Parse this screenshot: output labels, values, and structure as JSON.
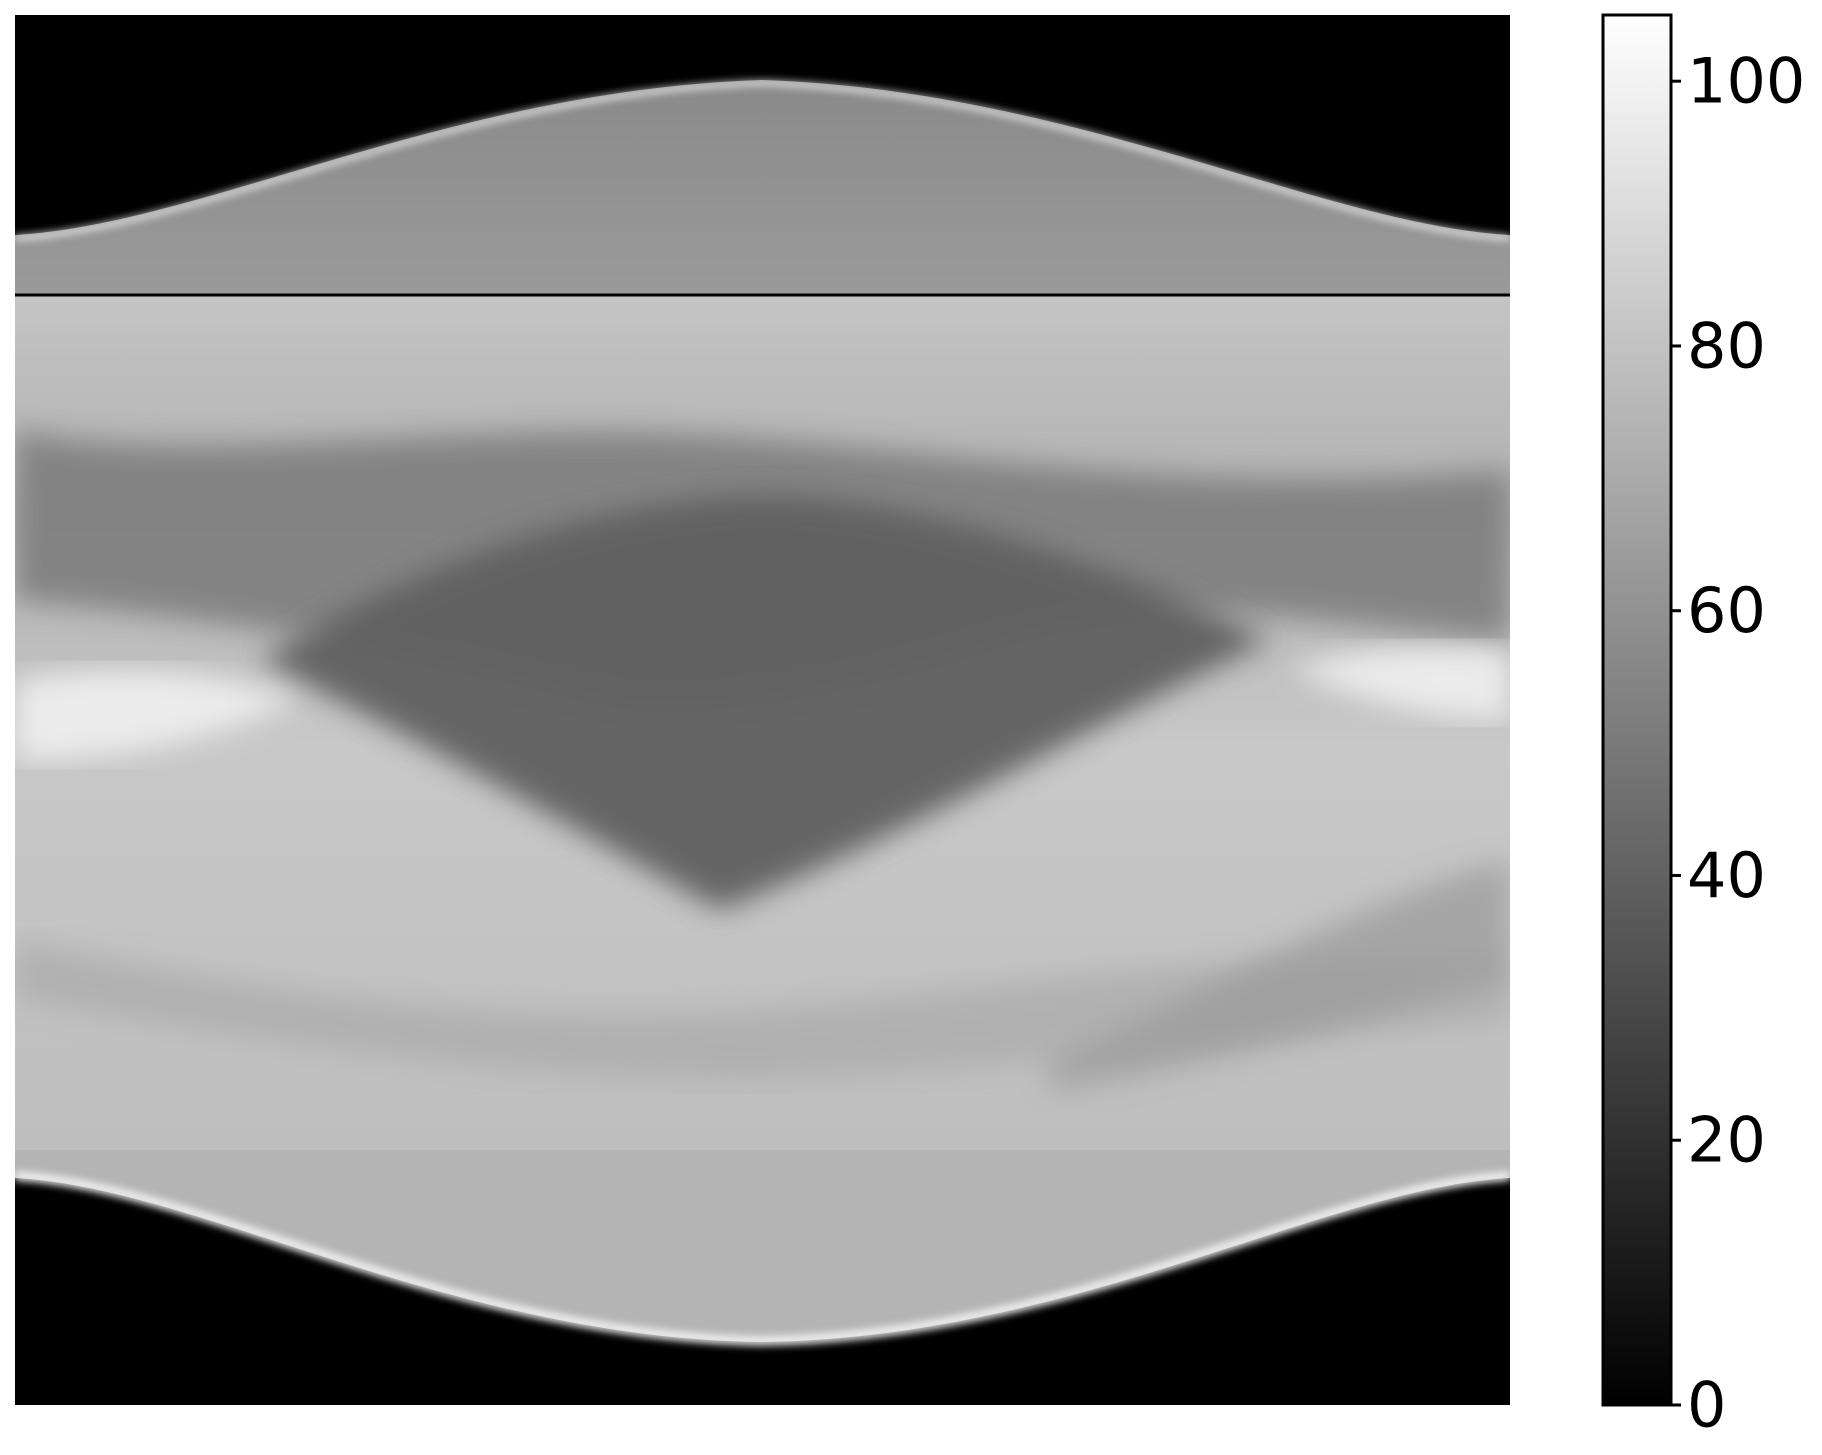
{
  "chart_data": {
    "type": "heatmap",
    "title": "",
    "xlabel": "",
    "ylabel": "",
    "colormap": "gray",
    "color_range": [
      0,
      105
    ],
    "colorbar": {
      "ticks": [
        0,
        20,
        40,
        60,
        80,
        100
      ],
      "tick_labels": [
        "0",
        "20",
        "40",
        "60",
        "80",
        "100"
      ],
      "placement": "right"
    },
    "horizontal_line": {
      "present": true,
      "color": "#000000"
    },
    "grid": false,
    "legend": "none",
    "description_values": {
      "background": 0,
      "upper_band": 60,
      "lower_band_bright": 80,
      "dark_core": 45,
      "edge_highlight": 100
    }
  }
}
